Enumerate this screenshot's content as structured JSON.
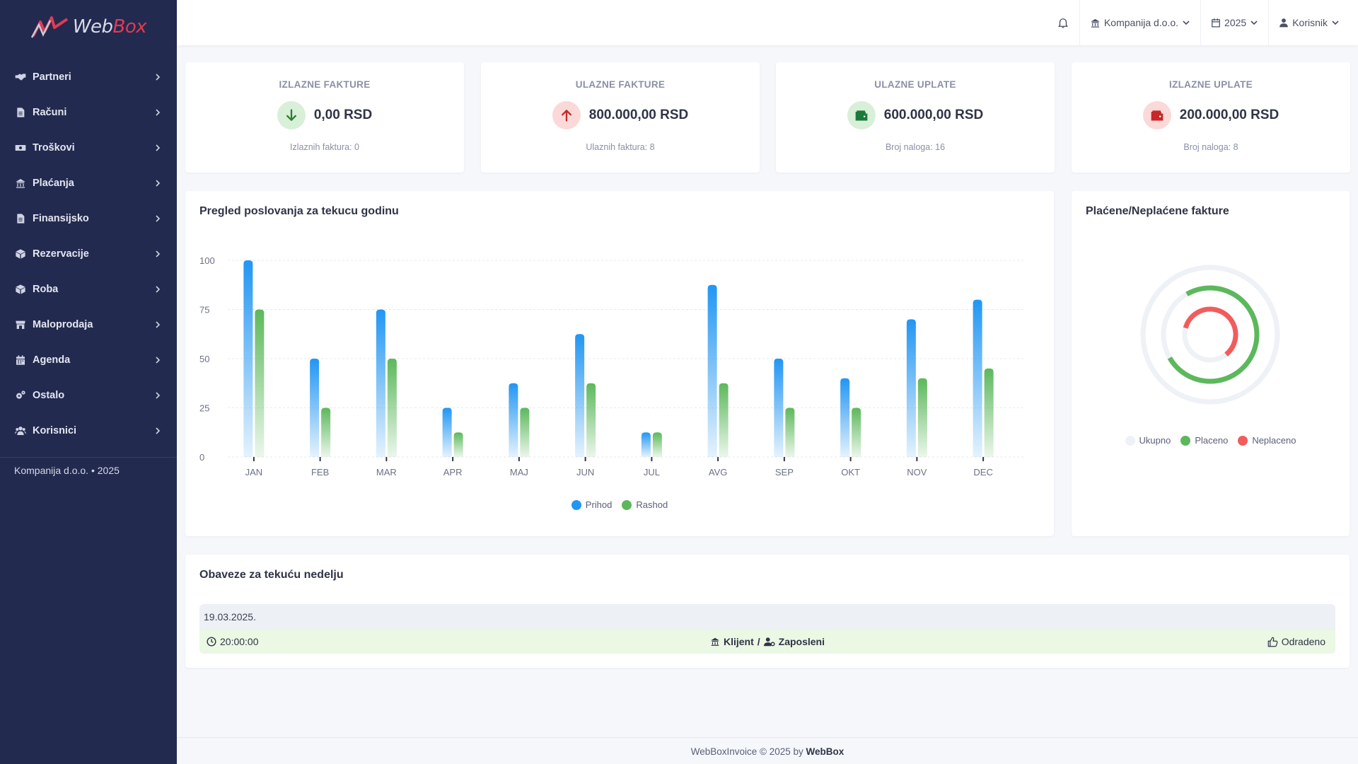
{
  "brand": {
    "logo_text_a": "Web",
    "logo_text_b": "Box"
  },
  "sidebar": {
    "items": [
      {
        "label": "Partneri",
        "icon": "handshake-icon"
      },
      {
        "label": "Računi",
        "icon": "document-icon"
      },
      {
        "label": "Troškovi",
        "icon": "money-icon"
      },
      {
        "label": "Plaćanja",
        "icon": "bank-icon"
      },
      {
        "label": "Finansijsko",
        "icon": "document-icon"
      },
      {
        "label": "Rezervacije",
        "icon": "box-icon"
      },
      {
        "label": "Roba",
        "icon": "box-icon"
      },
      {
        "label": "Maloprodaja",
        "icon": "store-icon"
      },
      {
        "label": "Agenda",
        "icon": "calendar-icon"
      },
      {
        "label": "Ostalo",
        "icon": "gears-icon"
      },
      {
        "label": "Korisnici",
        "icon": "users-icon"
      }
    ],
    "footer": "Kompanija d.o.o. • 2025"
  },
  "topbar": {
    "company": "Kompanija d.o.o.",
    "year": "2025",
    "user": "Korisnik"
  },
  "stats": [
    {
      "title": "IZLAZNE FAKTURE",
      "value": "0,00 RSD",
      "sub": "Izlaznih faktura: 0",
      "icon": "arrow-down-icon",
      "icon_color": "#2e7d32",
      "icon_bg": "#d8efd8"
    },
    {
      "title": "ULAZNE FAKTURE",
      "value": "800.000,00 RSD",
      "sub": "Ulaznih faktura: 8",
      "icon": "arrow-up-icon",
      "icon_color": "#c62828",
      "icon_bg": "#fbd9d9"
    },
    {
      "title": "ULAZNE UPLATE",
      "value": "600.000,00 RSD",
      "sub": "Broj naloga: 16",
      "icon": "wallet-icon",
      "icon_color": "#1b7a3a",
      "icon_bg": "#d8efd8"
    },
    {
      "title": "IZLAZNE UPLATE",
      "value": "200.000,00 RSD",
      "sub": "Broj naloga: 8",
      "icon": "wallet-icon",
      "icon_color": "#c62828",
      "icon_bg": "#fbd9d9"
    }
  ],
  "bar_chart_title": "Pregled poslovanja za tekucu godinu",
  "donut_chart_title": "Plaćene/Neplaćene fakture",
  "chart_data": [
    {
      "type": "bar",
      "title": "Pregled poslovanja za tekucu godinu",
      "categories": [
        "JAN",
        "FEB",
        "MAR",
        "APR",
        "MAJ",
        "JUN",
        "JUL",
        "AVG",
        "SEP",
        "OKT",
        "NOV",
        "DEC"
      ],
      "series": [
        {
          "name": "Prihod",
          "color": "#2196f3",
          "values": [
            100,
            50,
            75,
            25,
            37.5,
            62.5,
            12.5,
            87.5,
            50,
            40,
            70,
            80
          ]
        },
        {
          "name": "Rashod",
          "color": "#5cb85c",
          "values": [
            75,
            25,
            50,
            12.5,
            25,
            37.5,
            12.5,
            37.5,
            25,
            25,
            40,
            45
          ]
        }
      ],
      "yticks": [
        0,
        25,
        50,
        75,
        100
      ],
      "ylim": [
        0,
        100
      ],
      "grid": true,
      "legend": "bottom-center"
    },
    {
      "type": "pie",
      "title": "Plaćene/Neplaćene fakture",
      "style": "concentric-radial",
      "series": [
        {
          "name": "Ukupno",
          "color": "#eef1f6",
          "value": 100
        },
        {
          "name": "Placeno",
          "color": "#5cb85c",
          "value": 75
        },
        {
          "name": "Neplaceno",
          "color": "#f25c5c",
          "value": 60
        }
      ],
      "legend": "bottom-center"
    }
  ],
  "obligations": {
    "title": "Obaveze za tekuću nedelju",
    "date": "19.03.2025.",
    "time": "20:00:00",
    "client": "Klijent",
    "separator": "/",
    "employee": "Zaposleni",
    "status": "Odradeno"
  },
  "footer": {
    "text": "WebBoxInvoice © 2025 by",
    "brand": "WebBox"
  }
}
